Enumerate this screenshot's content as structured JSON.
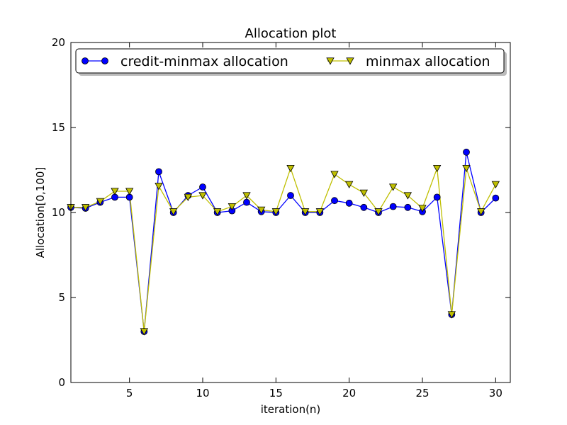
{
  "chart_data": {
    "type": "line",
    "title": "Allocation plot",
    "xlabel": "iteration(n)",
    "ylabel": "Allocation[0,100]",
    "xlim": [
      1,
      31
    ],
    "ylim": [
      0,
      20
    ],
    "x_ticks": [
      5,
      10,
      15,
      20,
      25,
      30
    ],
    "y_ticks": [
      0,
      5,
      10,
      15,
      20
    ],
    "legend_position": "top",
    "grid": false,
    "x": [
      1,
      2,
      3,
      4,
      5,
      6,
      7,
      8,
      9,
      10,
      11,
      12,
      13,
      14,
      15,
      16,
      17,
      18,
      19,
      20,
      21,
      22,
      23,
      24,
      25,
      26,
      27,
      28,
      29,
      30
    ],
    "series": [
      {
        "name": "credit-minmax allocation",
        "color": "#0000ff",
        "marker": "circle",
        "values": [
          10.3,
          10.25,
          10.6,
          10.9,
          10.9,
          3.0,
          12.4,
          10.0,
          11.0,
          11.5,
          10.0,
          10.1,
          10.6,
          10.05,
          10.0,
          11.0,
          10.0,
          10.0,
          10.7,
          10.55,
          10.3,
          10.0,
          10.35,
          10.3,
          10.05,
          10.9,
          4.0,
          13.55,
          10.0,
          10.85
        ]
      },
      {
        "name": "minmax allocation",
        "color": "#bfbf00",
        "marker": "triangle-down",
        "values": [
          10.3,
          10.3,
          10.65,
          11.25,
          11.25,
          3.0,
          11.55,
          10.05,
          10.9,
          11.0,
          10.05,
          10.35,
          11.0,
          10.15,
          10.05,
          12.6,
          10.05,
          10.05,
          12.25,
          11.65,
          11.15,
          10.05,
          11.5,
          11.0,
          10.25,
          12.6,
          4.0,
          12.6,
          10.05,
          11.65
        ]
      }
    ]
  }
}
